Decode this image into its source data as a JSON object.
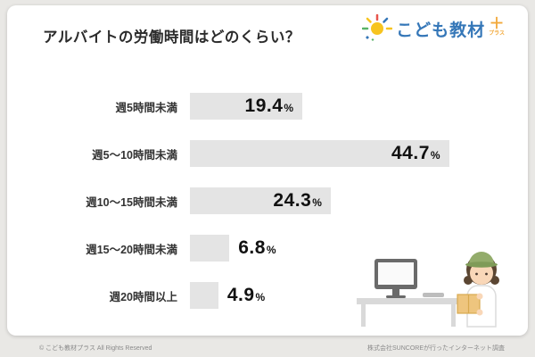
{
  "page": {
    "title": "アルバイトの労働時間はどのくらい？",
    "footer_left": "© こども教材プラス All Rights Reserved",
    "footer_right": "株式会社SUNCOREが行ったインターネット調査"
  },
  "logo": {
    "text": "こども教材",
    "plus": "＋",
    "plus_label": "プラス",
    "brand_color": "#3577b8",
    "accent_color": "#f2a93b"
  },
  "chart_data": {
    "type": "bar",
    "orientation": "horizontal",
    "title": "アルバイトの労働時間はどのくらい？",
    "categories": [
      "週5時間未満",
      "週5〜10時間未満",
      "週10〜15時間未満",
      "週15〜20時間未満",
      "週20時間以上"
    ],
    "values": [
      19.4,
      44.7,
      24.3,
      6.8,
      4.9
    ],
    "value_suffix": "%",
    "bar_color": "#e4e4e4",
    "xlim": [
      0,
      50
    ],
    "grid": false,
    "legend": false
  }
}
